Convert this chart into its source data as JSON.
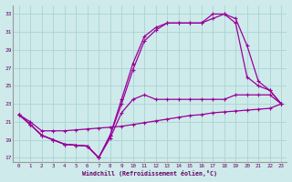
{
  "xlabel": "Windchill (Refroidissement éolien,°C)",
  "background_color": "#ceeaea",
  "grid_color": "#aad4d4",
  "line_color": "#990099",
  "xlim": [
    -0.5,
    23.5
  ],
  "ylim": [
    16.5,
    34
  ],
  "xticks": [
    0,
    1,
    2,
    3,
    4,
    5,
    6,
    7,
    8,
    9,
    10,
    11,
    12,
    13,
    14,
    15,
    16,
    17,
    18,
    19,
    20,
    21,
    22,
    23
  ],
  "yticks": [
    17,
    19,
    21,
    23,
    25,
    27,
    29,
    31,
    33
  ],
  "line1_x": [
    0,
    1,
    2,
    3,
    4,
    5,
    6,
    7,
    8,
    9,
    10,
    11,
    12,
    13,
    14,
    15,
    16,
    17,
    18,
    19,
    20,
    21,
    22,
    23
  ],
  "line1_y": [
    21.8,
    21.0,
    20.0,
    20.0,
    20.0,
    20.1,
    20.2,
    20.3,
    20.4,
    20.5,
    20.7,
    20.9,
    21.1,
    21.3,
    21.5,
    21.7,
    21.8,
    22.0,
    22.1,
    22.2,
    22.3,
    22.4,
    22.5,
    23.0
  ],
  "line2_x": [
    0,
    1,
    2,
    3,
    4,
    5,
    6,
    7,
    8,
    9,
    10,
    11,
    12,
    13,
    14,
    15,
    16,
    17,
    18,
    19,
    20,
    21,
    22,
    23
  ],
  "line2_y": [
    21.8,
    20.7,
    19.5,
    19.0,
    18.5,
    18.4,
    18.3,
    17.0,
    19.2,
    22.0,
    23.5,
    24.0,
    23.5,
    23.5,
    23.5,
    23.5,
    23.5,
    23.5,
    23.5,
    24.0,
    24.0,
    24.0,
    24.0,
    23.0
  ],
  "line3_x": [
    0,
    1,
    2,
    3,
    4,
    5,
    6,
    7,
    8,
    9,
    10,
    11,
    12,
    13,
    14,
    15,
    16,
    17,
    18,
    19,
    20,
    21,
    22,
    23
  ],
  "line3_y": [
    21.8,
    20.7,
    19.5,
    19.0,
    18.5,
    18.4,
    18.3,
    17.0,
    19.5,
    23.0,
    26.8,
    30.0,
    31.2,
    32.0,
    32.0,
    32.0,
    32.0,
    32.5,
    33.0,
    32.0,
    26.0,
    25.0,
    24.5,
    23.0
  ],
  "line4_x": [
    0,
    1,
    2,
    3,
    4,
    5,
    6,
    7,
    8,
    9,
    10,
    11,
    12,
    13,
    14,
    15,
    16,
    17,
    18,
    19,
    20,
    21,
    22,
    23
  ],
  "line4_y": [
    21.8,
    20.7,
    19.5,
    19.0,
    18.5,
    18.4,
    18.3,
    17.0,
    19.5,
    23.5,
    27.5,
    30.5,
    31.5,
    32.0,
    32.0,
    32.0,
    32.0,
    33.0,
    33.0,
    32.5,
    29.5,
    25.5,
    24.5,
    23.0
  ]
}
